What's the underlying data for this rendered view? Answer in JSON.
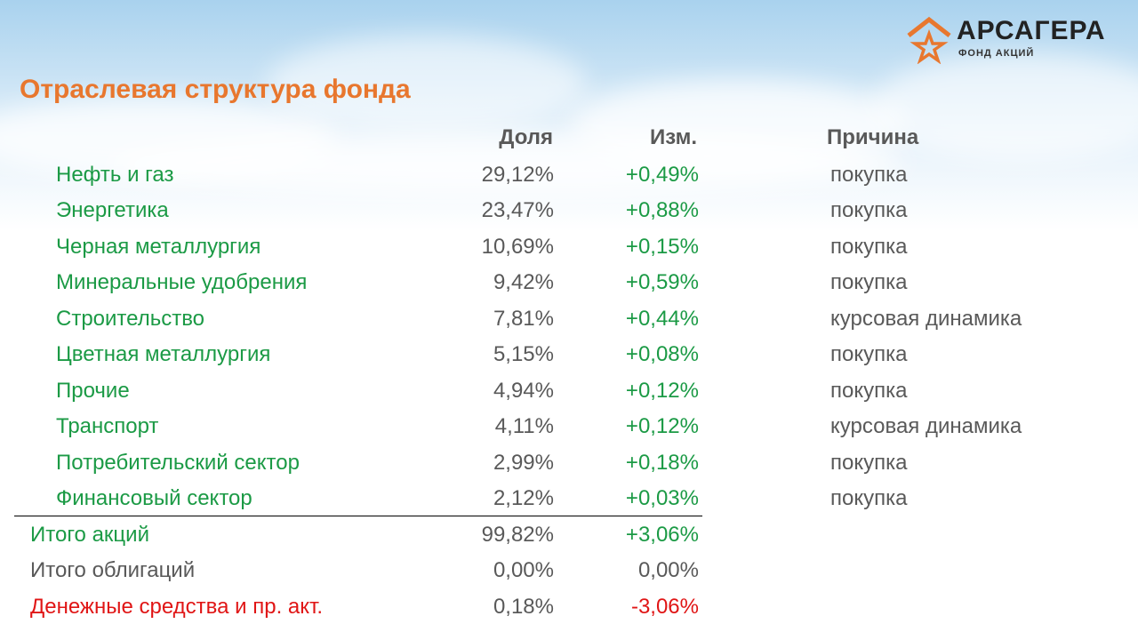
{
  "logo": {
    "name": "АРСАГЕРА",
    "subtitle": "ФОНД АКЦИЙ",
    "accent": "#e8772e"
  },
  "title": "Отраслевая структура фонда",
  "headers": {
    "share": "Доля",
    "change": "Изм.",
    "reason": "Причина"
  },
  "rows": [
    {
      "name": "Нефть и газ",
      "share": "29,12%",
      "change": "+0,49%",
      "reason": "покупка"
    },
    {
      "name": "Энергетика",
      "share": "23,47%",
      "change": "+0,88%",
      "reason": "покупка"
    },
    {
      "name": "Черная металлургия",
      "share": "10,69%",
      "change": "+0,15%",
      "reason": "покупка"
    },
    {
      "name": "Минеральные удобрения",
      "share": "9,42%",
      "change": "+0,59%",
      "reason": "покупка"
    },
    {
      "name": "Строительство",
      "share": "7,81%",
      "change": "+0,44%",
      "reason": "курсовая динамика"
    },
    {
      "name": "Цветная металлургия",
      "share": "5,15%",
      "change": "+0,08%",
      "reason": "покупка"
    },
    {
      "name": "Прочие",
      "share": "4,94%",
      "change": "+0,12%",
      "reason": "покупка"
    },
    {
      "name": "Транспорт",
      "share": "4,11%",
      "change": "+0,12%",
      "reason": "курсовая динамика"
    },
    {
      "name": "Потребительский сектор",
      "share": "2,99%",
      "change": "+0,18%",
      "reason": "покупка"
    },
    {
      "name": "Финансовый сектор",
      "share": "2,12%",
      "change": "+0,03%",
      "reason": "покупка"
    }
  ],
  "totals": [
    {
      "name": "Итого акций",
      "share": "99,82%",
      "change": "+3,06%",
      "color": "#1b9a45"
    },
    {
      "name": "Итого облигаций",
      "share": "0,00%",
      "change": "0,00%",
      "color": "#595959"
    },
    {
      "name": "Денежные средства и пр. акт.",
      "share": "0,18%",
      "change": "-3,06%",
      "color": "#e01515"
    }
  ],
  "colors": {
    "green": "#1b9a45",
    "gray": "#595959",
    "red": "#e01515",
    "orange": "#e8772e"
  }
}
